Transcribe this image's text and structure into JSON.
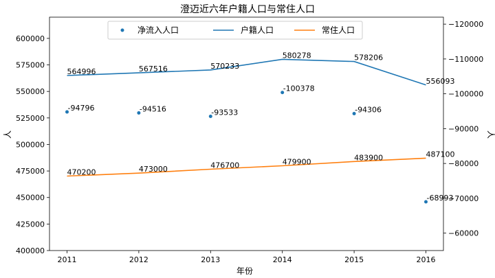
{
  "chart_data": {
    "type": "line",
    "title": "澄迈近六年户籍人口与常住人口",
    "xlabel": "年份",
    "ylabel": "人",
    "y2label": "人",
    "categories": [
      "2011",
      "2012",
      "2013",
      "2014",
      "2015",
      "2016"
    ],
    "ylim": [
      400000,
      620000
    ],
    "y2lim": [
      -55000,
      -122000
    ],
    "y2_inverted": true,
    "yticks": [
      "400000",
      "425000",
      "450000",
      "475000",
      "500000",
      "525000",
      "550000",
      "575000",
      "600000"
    ],
    "y2ticks": [
      "−60000",
      "−70000",
      "−80000",
      "−90000",
      "−100000",
      "−110000",
      "−120000"
    ],
    "legend_placement": "top",
    "series": [
      {
        "name": "净流入人口",
        "kind": "scatter",
        "axis": "right",
        "color": "#1f77b4",
        "values": [
          -94796,
          -94516,
          -93533,
          -100378,
          -94306,
          -68993
        ],
        "labels": [
          "-94796",
          "-94516",
          "-93533",
          "-100378",
          "-94306",
          "-68993"
        ]
      },
      {
        "name": "户籍人口",
        "kind": "line",
        "axis": "left",
        "color": "#1f77b4",
        "values": [
          564996,
          567516,
          570233,
          580278,
          578206,
          556093
        ],
        "labels": [
          "564996",
          "567516",
          "570233",
          "580278",
          "578206",
          "556093"
        ]
      },
      {
        "name": "常住人口",
        "kind": "line",
        "axis": "left",
        "color": "#ff7f0e",
        "values": [
          470200,
          473000,
          476700,
          479900,
          483900,
          487100
        ],
        "labels": [
          "470200",
          "473000",
          "476700",
          "479900",
          "483900",
          "487100"
        ]
      }
    ]
  }
}
